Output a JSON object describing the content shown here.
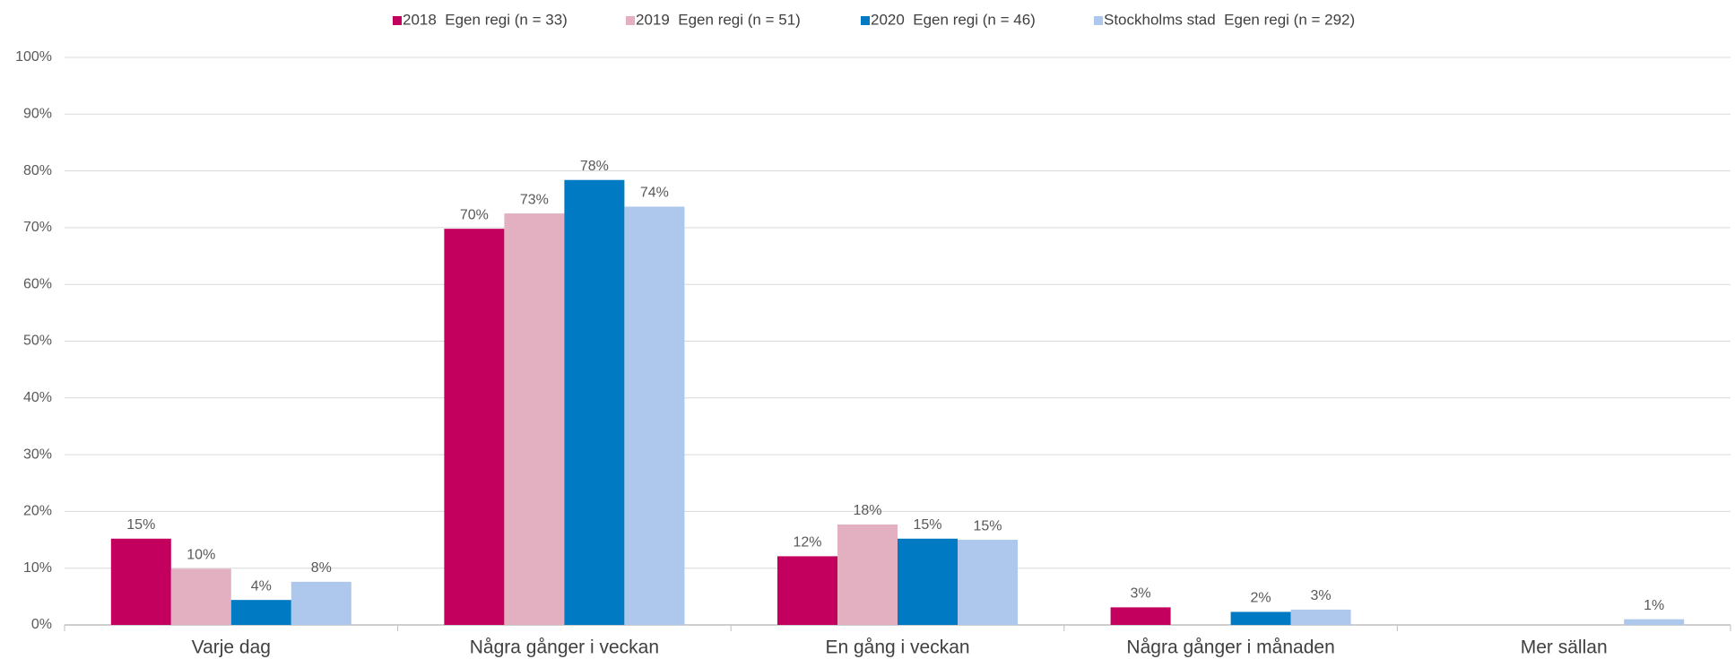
{
  "chart_data": {
    "type": "bar",
    "categories": [
      "Varje dag",
      "Några gånger i veckan",
      "En gång i veckan",
      "Några gånger i månaden",
      "Mer sällan"
    ],
    "series": [
      {
        "name": "2018  Egen regi (n = 33)",
        "color": "#c4005f",
        "values": [
          15.2,
          69.8,
          12.1,
          3.1,
          null
        ],
        "value_labels": [
          "15%",
          "70%",
          "12%",
          "3%",
          null
        ]
      },
      {
        "name": "2019  Egen regi (n = 51)",
        "color": "#e3b0c2",
        "values": [
          9.9,
          72.5,
          17.7,
          null,
          null
        ],
        "value_labels": [
          "10%",
          "73%",
          "18%",
          null,
          null
        ]
      },
      {
        "name": "2020  Egen regi (n = 46)",
        "color": "#007ac3",
        "values": [
          4.4,
          78.4,
          15.2,
          2.3,
          null
        ],
        "value_labels": [
          "4%",
          "78%",
          "15%",
          "2%",
          null
        ]
      },
      {
        "name": "Stockholms stad  Egen regi (n = 292)",
        "color": "#adc8ec",
        "values": [
          7.6,
          73.7,
          15.0,
          2.7,
          1.0
        ],
        "value_labels": [
          "8%",
          "74%",
          "15%",
          "3%",
          "1%"
        ]
      }
    ],
    "ylim": [
      0,
      100
    ],
    "yticks": [
      {
        "value": 0,
        "label": "0%"
      },
      {
        "value": 10,
        "label": "10%"
      },
      {
        "value": 20,
        "label": "20%"
      },
      {
        "value": 30,
        "label": "30%"
      },
      {
        "value": 40,
        "label": "40%"
      },
      {
        "value": 50,
        "label": "50%"
      },
      {
        "value": 60,
        "label": "60%"
      },
      {
        "value": 70,
        "label": "70%"
      },
      {
        "value": 80,
        "label": "80%"
      },
      {
        "value": 90,
        "label": "90%"
      },
      {
        "value": 100,
        "label": "100%"
      }
    ],
    "grid": true,
    "legend": "top"
  }
}
